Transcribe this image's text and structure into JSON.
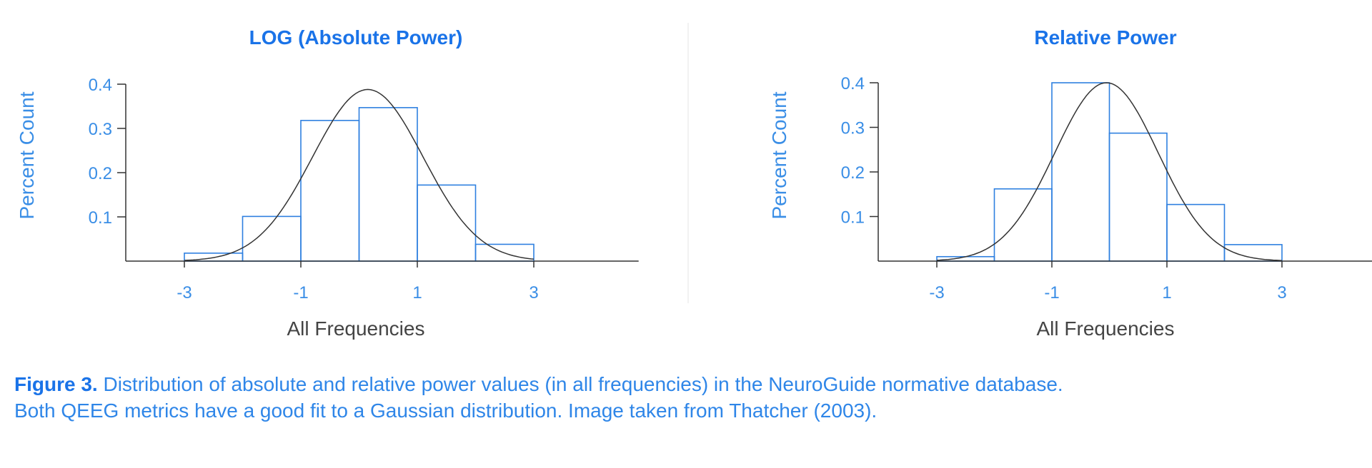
{
  "chart_data": [
    {
      "type": "bar",
      "title": "LOG (Absolute Power)",
      "xlabel": "All Frequencies",
      "ylabel": "Percent Count",
      "xlim": [
        -4,
        4.8
      ],
      "ylim": [
        0,
        0.4
      ],
      "xticks": [
        -3,
        -1,
        1,
        3
      ],
      "yticks": [
        0.1,
        0.2,
        0.3,
        0.4
      ],
      "bins": [
        {
          "x0": -3,
          "x1": -2,
          "value": 0.018
        },
        {
          "x0": -2,
          "x1": -1,
          "value": 0.101
        },
        {
          "x0": -1,
          "x1": 0,
          "value": 0.318
        },
        {
          "x0": 0,
          "x1": 1,
          "value": 0.347
        },
        {
          "x0": 1,
          "x1": 2,
          "value": 0.172
        },
        {
          "x0": 2,
          "x1": 3,
          "value": 0.038
        }
      ],
      "curve": {
        "mean": 0.15,
        "peak": 0.388,
        "sd": 0.95,
        "x_range": [
          -3,
          3
        ]
      }
    },
    {
      "type": "bar",
      "title": "Relative Power",
      "xlabel": "All Frequencies",
      "ylabel": "Percent Count",
      "xlim": [
        -4,
        4.8
      ],
      "ylim": [
        0,
        0.4
      ],
      "xticks": [
        -3,
        -1,
        1,
        3
      ],
      "yticks": [
        0.1,
        0.2,
        0.3,
        0.4
      ],
      "bins": [
        {
          "x0": -3,
          "x1": -2,
          "value": 0.01
        },
        {
          "x0": -2,
          "x1": -1,
          "value": 0.162
        },
        {
          "x0": -1,
          "x1": 0,
          "value": 0.4
        },
        {
          "x0": 0,
          "x1": 1,
          "value": 0.287
        },
        {
          "x0": 1,
          "x1": 2,
          "value": 0.127
        },
        {
          "x0": 2,
          "x1": 3,
          "value": 0.037
        }
      ],
      "curve": {
        "mean": -0.05,
        "peak": 0.4,
        "sd": 0.9,
        "x_range": [
          -3,
          3
        ]
      }
    }
  ],
  "caption": {
    "label": "Figure 3.",
    "line1": " Distribution of absolute and relative power values (in all frequencies) in the NeuroGuide normative database.",
    "line2": "Both QEEG metrics have a good fit to a Gaussian distribution. Image taken from Thatcher (2003)."
  },
  "colors": {
    "bar_stroke": "#2f80e0",
    "curve": "#333333",
    "axis": "#333333",
    "divider": "#e6e6e6"
  }
}
